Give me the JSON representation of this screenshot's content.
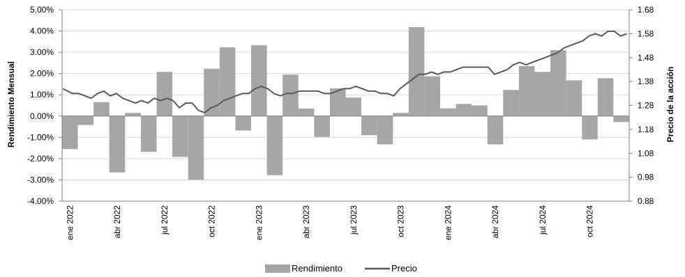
{
  "chart_data": {
    "type": "bar+line",
    "title": "",
    "y_left_label": "Rendimiento Mensual",
    "y_right_label": "Precio de la acción",
    "y_left_lim": [
      -4.0,
      5.0
    ],
    "y_left_ticks": [
      "5.00%",
      "4.00%",
      "3.00%",
      "2.00%",
      "1.00%",
      "0.00%",
      "-1.00%",
      "-2.00%",
      "-3.00%",
      "-4.00%"
    ],
    "y_left_tick_values": [
      5,
      4,
      3,
      2,
      1,
      0,
      -1,
      -2,
      -3,
      -4
    ],
    "y_right_lim": [
      0.88,
      1.68
    ],
    "y_right_ticks": [
      "1.68",
      "1.58",
      "1.48",
      "1.38",
      "1.28",
      "1.18",
      "1.08",
      "0.98",
      "0.88"
    ],
    "y_right_tick_values": [
      1.68,
      1.58,
      1.48,
      1.38,
      1.28,
      1.18,
      1.08,
      0.98,
      0.88
    ],
    "x_tick_labels": [
      "ene 2022",
      "abr 2022",
      "jul 2022",
      "oct 2022",
      "ene 2023",
      "abr 2023",
      "jul 2023",
      "oct 2023",
      "ene 2024",
      "abr 2024",
      "jul 2024",
      "oct 2024"
    ],
    "x_tick_month_index": [
      0,
      3,
      6,
      9,
      12,
      15,
      18,
      21,
      24,
      27,
      30,
      33
    ],
    "months_total": 36,
    "grid": "horizontal",
    "legend_position": "bottom",
    "series": [
      {
        "name": "Rendimiento",
        "type": "bar",
        "axis": "left",
        "unit": "%",
        "color": "#a6a6a6",
        "values": [
          -1.55,
          -0.42,
          0.66,
          -2.65,
          0.15,
          -1.68,
          2.08,
          -1.92,
          -3.0,
          2.23,
          3.23,
          -0.68,
          3.33,
          -2.78,
          1.95,
          0.35,
          -0.98,
          1.3,
          0.87,
          -0.9,
          -1.33,
          0.15,
          4.18,
          1.87,
          0.36,
          0.57,
          0.5,
          -1.33,
          1.23,
          2.35,
          2.08,
          3.1,
          1.68,
          -1.1,
          1.78,
          -0.28
        ]
      },
      {
        "name": "Precio",
        "type": "line",
        "axis": "right",
        "color": "#595959",
        "x_month": [
          0,
          0.3,
          0.6,
          1,
          1.4,
          1.8,
          2.2,
          2.6,
          3,
          3.4,
          3.8,
          4.2,
          4.6,
          5,
          5.4,
          5.8,
          6.2,
          6.6,
          7,
          7.4,
          7.8,
          8.2,
          8.6,
          9,
          9.4,
          9.8,
          10.2,
          10.6,
          11,
          11.4,
          11.8,
          12.2,
          12.6,
          13,
          13.4,
          13.8,
          14.2,
          14.6,
          15,
          15.4,
          15.8,
          16.2,
          16.6,
          17,
          17.4,
          17.8,
          18.2,
          18.6,
          19,
          19.4,
          19.8,
          20.2,
          20.6,
          21,
          21.4,
          21.8,
          22.2,
          22.6,
          23,
          23.4,
          23.8,
          24.2,
          24.6,
          25,
          25.4,
          25.8,
          26.2,
          26.6,
          27,
          27.4,
          27.8,
          28.2,
          28.6,
          29,
          29.4,
          29.8,
          30.2,
          30.6,
          31,
          31.4,
          31.8,
          32.2,
          32.6,
          33,
          33.4,
          33.8,
          34.2,
          34.6,
          35,
          35.4,
          35.8
        ],
        "values": [
          1.35,
          1.34,
          1.33,
          1.33,
          1.32,
          1.31,
          1.33,
          1.34,
          1.32,
          1.33,
          1.31,
          1.3,
          1.29,
          1.3,
          1.29,
          1.31,
          1.3,
          1.31,
          1.3,
          1.27,
          1.29,
          1.29,
          1.26,
          1.25,
          1.27,
          1.28,
          1.3,
          1.31,
          1.32,
          1.33,
          1.33,
          1.35,
          1.36,
          1.35,
          1.33,
          1.32,
          1.33,
          1.33,
          1.34,
          1.34,
          1.34,
          1.34,
          1.33,
          1.33,
          1.34,
          1.35,
          1.35,
          1.36,
          1.35,
          1.34,
          1.34,
          1.33,
          1.33,
          1.32,
          1.35,
          1.37,
          1.39,
          1.41,
          1.41,
          1.42,
          1.41,
          1.42,
          1.42,
          1.43,
          1.44,
          1.44,
          1.44,
          1.44,
          1.44,
          1.41,
          1.42,
          1.43,
          1.45,
          1.46,
          1.45,
          1.46,
          1.47,
          1.48,
          1.49,
          1.5,
          1.52,
          1.53,
          1.54,
          1.55,
          1.57,
          1.58,
          1.57,
          1.59,
          1.59,
          1.57,
          1.58
        ]
      }
    ]
  }
}
